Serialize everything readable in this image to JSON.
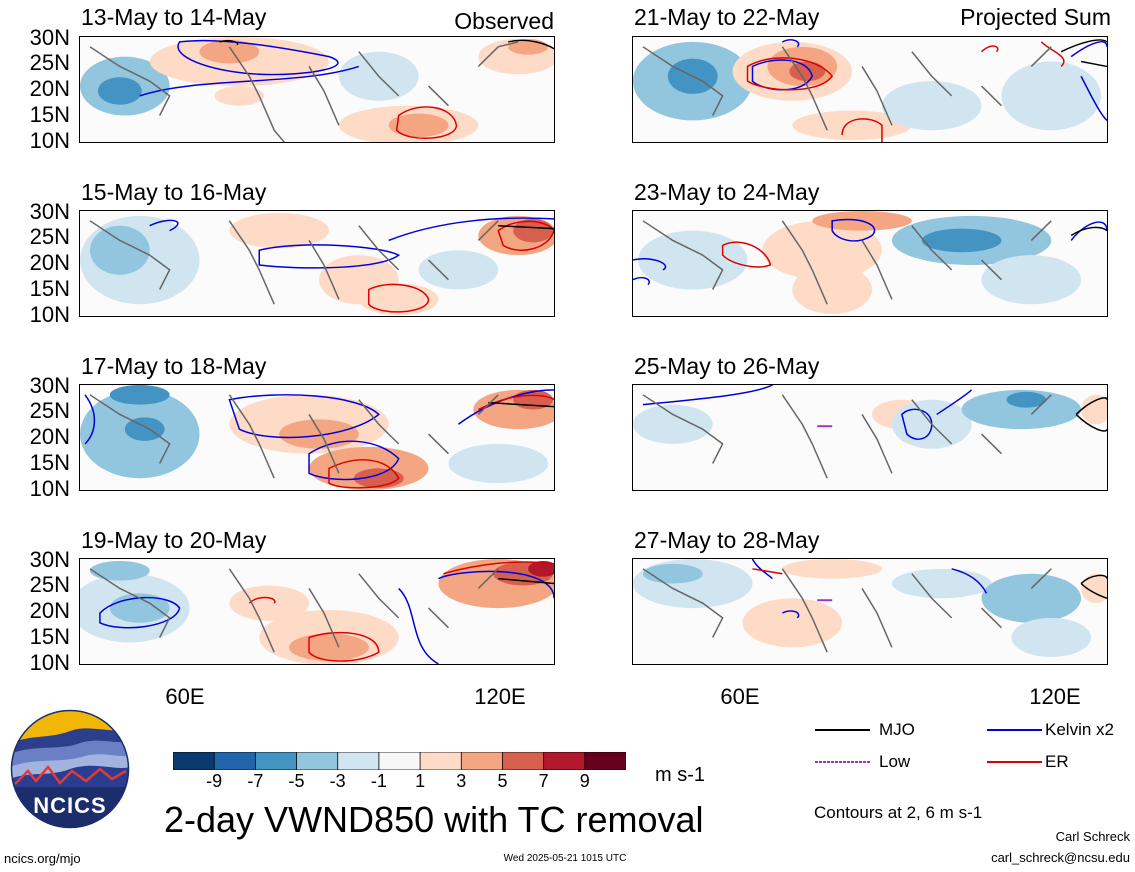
{
  "panels_left": [
    {
      "date": "13-May to 14-May",
      "tag": "Observed"
    },
    {
      "date": "15-May to 16-May",
      "tag": ""
    },
    {
      "date": "17-May to 18-May",
      "tag": ""
    },
    {
      "date": "19-May to 20-May",
      "tag": ""
    }
  ],
  "panels_right": [
    {
      "date": "21-May to 22-May",
      "tag": "Projected Sum"
    },
    {
      "date": "23-May to 24-May",
      "tag": ""
    },
    {
      "date": "25-May to 26-May",
      "tag": ""
    },
    {
      "date": "27-May to 28-May",
      "tag": ""
    }
  ],
  "latitude_labels": [
    "30N",
    "25N",
    "20N",
    "15N",
    "10N"
  ],
  "longitude_labels": [
    "60E",
    "120E"
  ],
  "colorbar": {
    "ticks": [
      "-9",
      "-7",
      "-5",
      "-3",
      "-1",
      "1",
      "3",
      "5",
      "7",
      "9"
    ],
    "colors": [
      "#0a3b6e",
      "#2166ac",
      "#4393c3",
      "#92c5de",
      "#d1e5f0",
      "#f7f7f7",
      "#fddbc7",
      "#f4a582",
      "#d6604d",
      "#b2182b",
      "#67001f"
    ],
    "units": "m s-1"
  },
  "legend": {
    "items": [
      {
        "label": "MJO",
        "color": "#000000"
      },
      {
        "label": "Kelvin x2",
        "color": "#0000dd"
      },
      {
        "label": "Low",
        "color": "#9933cc"
      },
      {
        "label": "ER",
        "color": "#dd0000"
      }
    ],
    "contours_note": "Contours at 2, 6 m s-1"
  },
  "title": "2-day VWND850 with TC removal",
  "logo": {
    "text": "NCICS"
  },
  "footer": {
    "left": "ncics.org/mjo",
    "center": "Wed 2025-05-21 1015 UTC",
    "author": "Carl Schreck",
    "email": "carl_schreck@ncsu.edu"
  }
}
